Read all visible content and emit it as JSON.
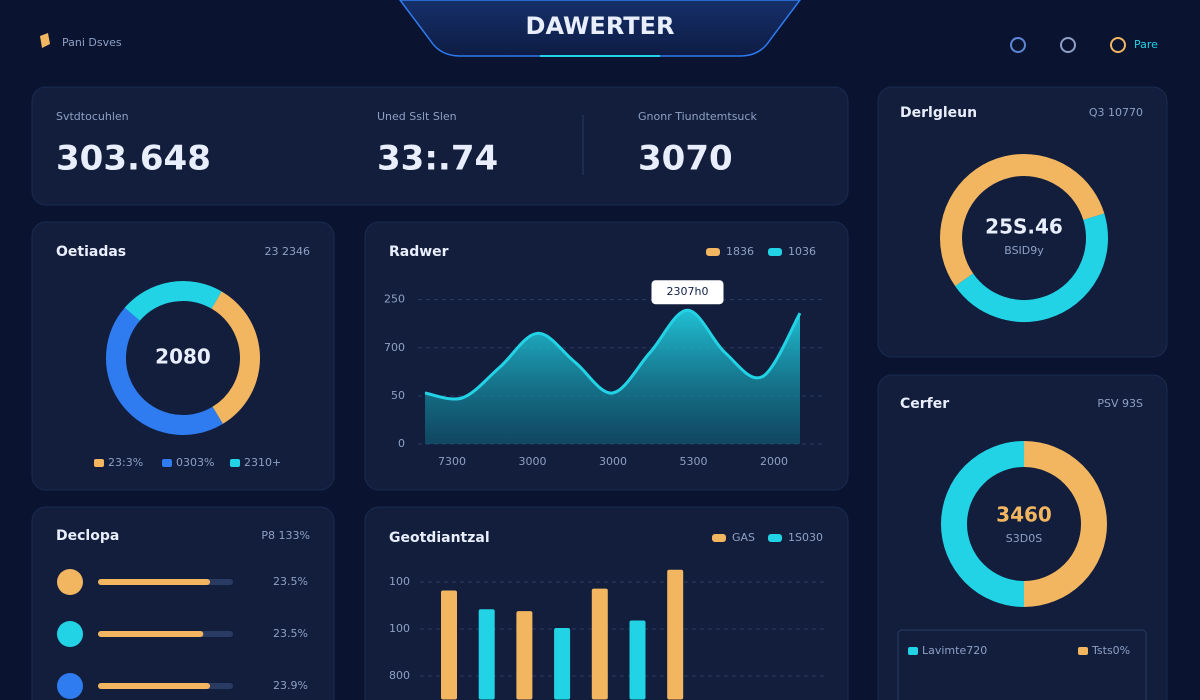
{
  "header": {
    "title": "DAWERTER",
    "brand": "Pani Dsves",
    "user": "Pare"
  },
  "stats": [
    {
      "label": "Svtdtocuhlen",
      "value": "303.648"
    },
    {
      "label": "Uned Sslt Slen",
      "value": "33:.74"
    },
    {
      "label": "Gnonr Tiundtemtsuck",
      "value": "3070"
    }
  ],
  "donut_left": {
    "type": "pie",
    "title": "Oetiadas",
    "badge": "23 2346",
    "center": "2080",
    "series": [
      {
        "name": "23:3%",
        "color": "#f2b661",
        "value": 33
      },
      {
        "name": "0303%",
        "color": "#2f7bf0",
        "value": 45
      },
      {
        "name": "2310+",
        "color": "#22d3e6",
        "value": 22
      }
    ]
  },
  "area": {
    "type": "area",
    "title": "Radwer",
    "tooltip": "2307h0",
    "legend": [
      {
        "name": "1836",
        "color": "#f2b661"
      },
      {
        "name": "1036",
        "color": "#22d3e6"
      }
    ],
    "color": "#22d3e6",
    "values": [
      53,
      48,
      80,
      115,
      85,
      53,
      95,
      139,
      95,
      70,
      136
    ],
    "categories": [
      "7300",
      "3000",
      "3000",
      "5300",
      "2000"
    ],
    "ylim": [
      0,
      160
    ],
    "yticks": [
      0,
      50,
      {
        "value": 100,
        "label": "700"
      },
      {
        "value": 150,
        "label": "250"
      }
    ]
  },
  "progress": {
    "title": "Declopa",
    "badge": "P8 133%",
    "rows": [
      {
        "color": "#f2b661",
        "value": 83,
        "label": "23.5%"
      },
      {
        "color": "#22d3e6",
        "value": 78,
        "label": "23.5%"
      },
      {
        "color": "#2f7bf0",
        "value": 83,
        "label": "23.9%"
      }
    ]
  },
  "bars": {
    "type": "bar",
    "title": "Geotdiantzal",
    "legend": [
      {
        "name": "GAS",
        "color": "#f2b661"
      },
      {
        "name": "1S030",
        "color": "#22d3e6"
      }
    ],
    "values": [
      91,
      71,
      69,
      51,
      93,
      59,
      113
    ],
    "colors": [
      "#f2b661",
      "#22d3e6",
      "#f2b661",
      "#22d3e6",
      "#f2b661",
      "#22d3e6",
      "#f2b661"
    ],
    "ylim": [
      -25,
      125
    ],
    "yticks": [
      {
        "value": 0,
        "label": "800"
      },
      {
        "value": 50,
        "label": "100"
      },
      100
    ]
  },
  "donut_top": {
    "type": "pie",
    "title": "Derlgleun",
    "badge": "Q3 10770",
    "center": "25S.46",
    "sub": "BSID9y",
    "series": [
      {
        "color": "#f2b661",
        "value": 55
      },
      {
        "color": "#22d3e6",
        "value": 45
      }
    ]
  },
  "donut_bottom": {
    "type": "pie",
    "title": "Cerfer",
    "badge": "PSV 93S",
    "center": "3460",
    "sub": "S3D0S",
    "series": [
      {
        "name": "Tsts0%",
        "color": "#f2b661",
        "value": 50
      },
      {
        "name": "Lavimte720",
        "color": "#22d3e6",
        "value": 50
      }
    ]
  }
}
